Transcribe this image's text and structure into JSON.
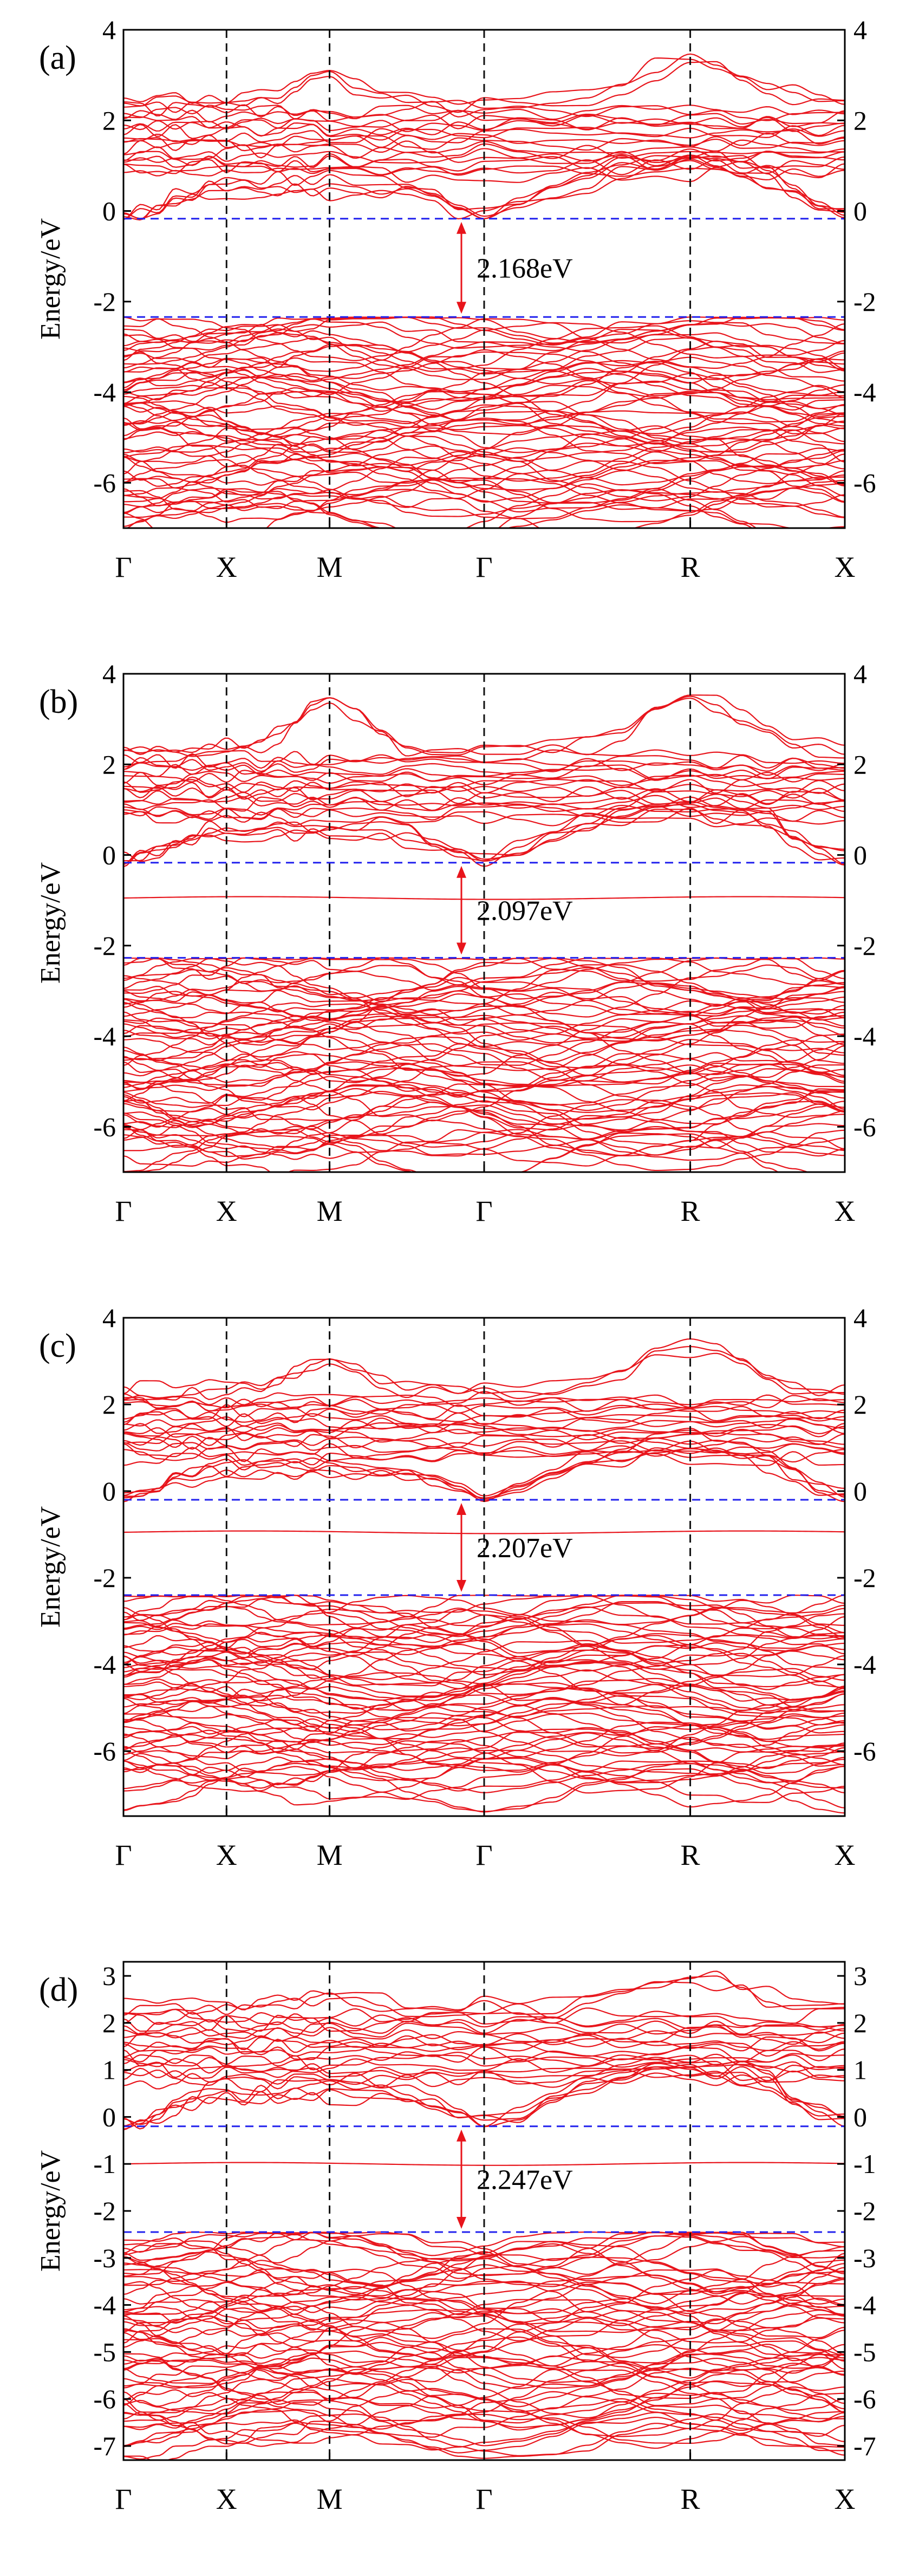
{
  "colors": {
    "band": "#e8141b",
    "fermi_line": "#2222ee",
    "k_line": "#111111",
    "arrow": "#e8141b",
    "axis": "#000000"
  },
  "chart_data": [
    {
      "type": "line",
      "panel_label": "(a)",
      "ylabel": "Energy/eV",
      "ylim": [
        -7,
        4
      ],
      "yticks": [
        -6,
        -4,
        -2,
        0,
        2,
        4
      ],
      "ytick_labels": [
        "-6",
        "-4",
        "-2",
        "0",
        "2",
        "4"
      ],
      "xlim": [
        0,
        7
      ],
      "k_points": [
        {
          "label": "Γ",
          "x": 0
        },
        {
          "label": "X",
          "x": 1
        },
        {
          "label": "M",
          "x": 2
        },
        {
          "label": "Γ",
          "x": 3.5
        },
        {
          "label": "R",
          "x": 5.5
        },
        {
          "label": "X",
          "x": 7
        }
      ],
      "cbm": -0.17,
      "vbm": -2.34,
      "gap_label": "2.168eV",
      "defect_level": null,
      "bands": {
        "conduction": {
          "min": -0.17,
          "max": 2.5,
          "count": 26,
          "peak_M": 3.0,
          "peak_R": 3.4
        },
        "valence": {
          "min": -6.9,
          "max": -2.34,
          "count": 60
        }
      }
    },
    {
      "type": "line",
      "panel_label": "(b)",
      "ylabel": "Energy/eV",
      "ylim": [
        -7,
        4
      ],
      "yticks": [
        -6,
        -4,
        -2,
        0,
        2,
        4
      ],
      "ytick_labels": [
        "-6",
        "-4",
        "-2",
        "0",
        "2",
        "4"
      ],
      "xlim": [
        0,
        7
      ],
      "k_points": [
        {
          "label": "Γ",
          "x": 0
        },
        {
          "label": "X",
          "x": 1
        },
        {
          "label": "M",
          "x": 2
        },
        {
          "label": "Γ",
          "x": 3.5
        },
        {
          "label": "R",
          "x": 5.5
        },
        {
          "label": "X",
          "x": 7
        }
      ],
      "cbm": -0.17,
      "vbm": -2.27,
      "gap_label": "2.097eV",
      "defect_level": -0.95,
      "bands": {
        "conduction": {
          "min": -0.17,
          "max": 2.4,
          "count": 26,
          "peak_M": 3.4,
          "peak_R": 3.5
        },
        "valence": {
          "min": -6.8,
          "max": -2.27,
          "count": 60
        }
      }
    },
    {
      "type": "line",
      "panel_label": "(c)",
      "ylabel": "Energy/eV",
      "ylim": [
        -7.5,
        4
      ],
      "yticks": [
        -6,
        -4,
        -2,
        0,
        2,
        4
      ],
      "ytick_labels": [
        "-6",
        "-4",
        "-2",
        "0",
        "2",
        "4"
      ],
      "xlim": [
        0,
        7
      ],
      "k_points": [
        {
          "label": "Γ",
          "x": 0
        },
        {
          "label": "X",
          "x": 1
        },
        {
          "label": "M",
          "x": 2
        },
        {
          "label": "Γ",
          "x": 3.5
        },
        {
          "label": "R",
          "x": 5.5
        },
        {
          "label": "X",
          "x": 7
        }
      ],
      "cbm": -0.2,
      "vbm": -2.4,
      "gap_label": "2.207eV",
      "defect_level": -0.95,
      "bands": {
        "conduction": {
          "min": -0.2,
          "max": 2.4,
          "count": 26,
          "peak_M": 3.0,
          "peak_R": 3.4
        },
        "valence": {
          "min": -7.0,
          "max": -2.4,
          "count": 60
        }
      }
    },
    {
      "type": "line",
      "panel_label": "(d)",
      "ylabel": "Energy/eV",
      "ylim": [
        -7.3,
        3.3
      ],
      "yticks": [
        -7,
        -6,
        -5,
        -4,
        -3,
        -2,
        -1,
        0,
        1,
        2,
        3
      ],
      "ytick_labels": [
        "-7",
        "-6",
        "-5",
        "-4",
        "-3",
        "-2",
        "-1",
        "0",
        "1",
        "2",
        "3"
      ],
      "xlim": [
        0,
        7
      ],
      "k_points": [
        {
          "label": "Γ",
          "x": 0
        },
        {
          "label": "X",
          "x": 1
        },
        {
          "label": "M",
          "x": 2
        },
        {
          "label": "Γ",
          "x": 3.5
        },
        {
          "label": "R",
          "x": 5.5
        },
        {
          "label": "X",
          "x": 7
        }
      ],
      "cbm": -0.2,
      "vbm": -2.45,
      "gap_label": "2.247eV",
      "defect_level": -1.0,
      "bands": {
        "conduction": {
          "min": -0.2,
          "max": 2.4,
          "count": 26,
          "peak_M": 2.6,
          "peak_R": 3.1
        },
        "valence": {
          "min": -7.0,
          "max": -2.45,
          "count": 60
        }
      }
    }
  ]
}
